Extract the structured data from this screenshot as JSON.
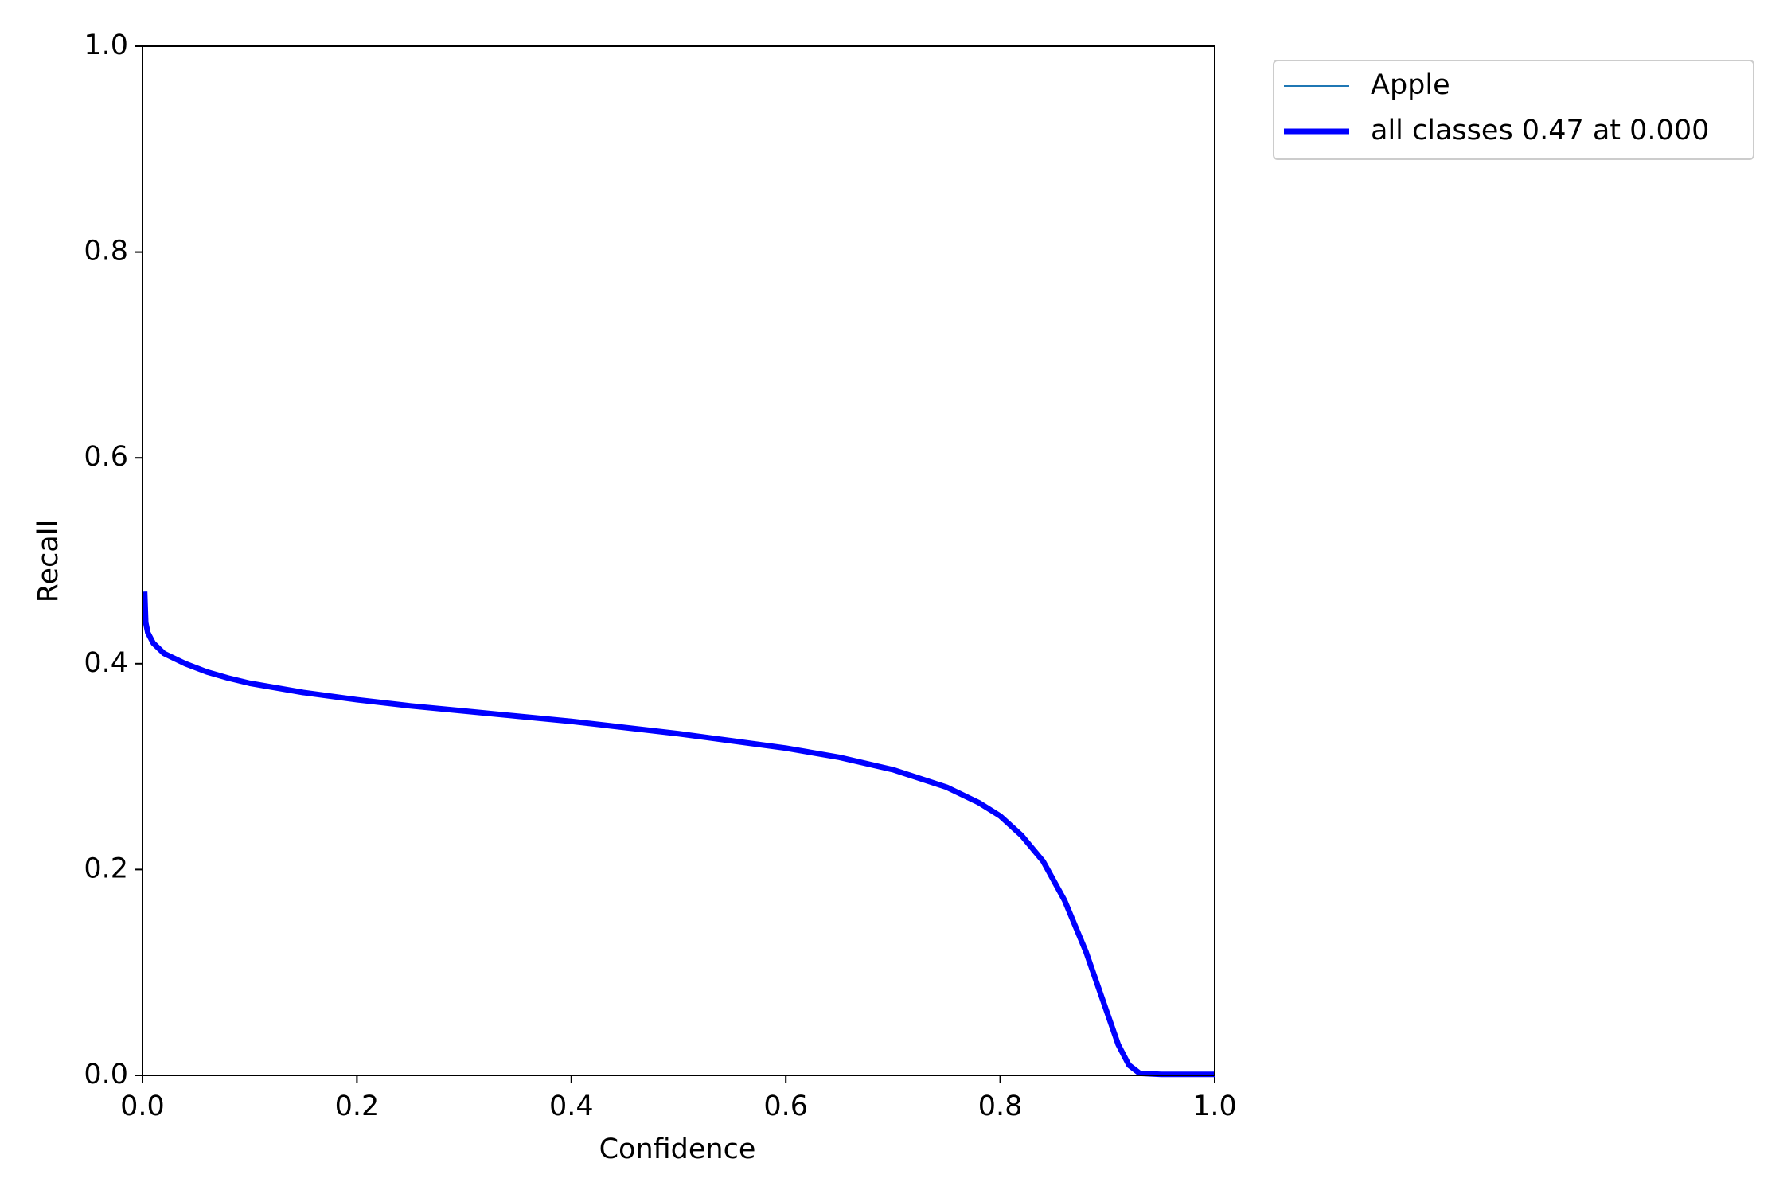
{
  "chart_data": {
    "type": "line",
    "xlabel": "Confidence",
    "ylabel": "Recall",
    "x": [
      0.002,
      0.003,
      0.005,
      0.01,
      0.02,
      0.04,
      0.06,
      0.08,
      0.1,
      0.15,
      0.2,
      0.25,
      0.3,
      0.35,
      0.4,
      0.45,
      0.5,
      0.55,
      0.6,
      0.65,
      0.7,
      0.75,
      0.78,
      0.8,
      0.82,
      0.84,
      0.86,
      0.88,
      0.89,
      0.9,
      0.91,
      0.92,
      0.93,
      0.95,
      1.0
    ],
    "series": [
      {
        "name": "Apple",
        "color": "#1f77b4",
        "width": 2,
        "values": [
          0.47,
          0.44,
          0.43,
          0.42,
          0.41,
          0.4,
          0.392,
          0.386,
          0.381,
          0.372,
          0.365,
          0.359,
          0.354,
          0.349,
          0.344,
          0.338,
          0.332,
          0.325,
          0.318,
          0.309,
          0.297,
          0.28,
          0.265,
          0.252,
          0.233,
          0.208,
          0.17,
          0.12,
          0.09,
          0.06,
          0.03,
          0.01,
          0.002,
          0.001,
          0.001
        ]
      },
      {
        "name": "all classes 0.47 at 0.000",
        "color": "#0000ff",
        "width": 7,
        "values": [
          0.47,
          0.44,
          0.43,
          0.42,
          0.41,
          0.4,
          0.392,
          0.386,
          0.381,
          0.372,
          0.365,
          0.359,
          0.354,
          0.349,
          0.344,
          0.338,
          0.332,
          0.325,
          0.318,
          0.309,
          0.297,
          0.28,
          0.265,
          0.252,
          0.233,
          0.208,
          0.17,
          0.12,
          0.09,
          0.06,
          0.03,
          0.01,
          0.002,
          0.001,
          0.001
        ]
      }
    ],
    "xlim": [
      0,
      1
    ],
    "ylim": [
      0,
      1
    ],
    "xticks": [
      {
        "value": 0,
        "label": "0.0"
      },
      0.2,
      0.4,
      0.6,
      0.8,
      {
        "value": 1,
        "label": "1.0"
      }
    ],
    "yticks": [
      {
        "value": 0,
        "label": "0.0"
      },
      0.2,
      0.4,
      0.6,
      0.8,
      {
        "value": 1,
        "label": "1.0"
      }
    ],
    "legend": "outside-upper-right"
  }
}
